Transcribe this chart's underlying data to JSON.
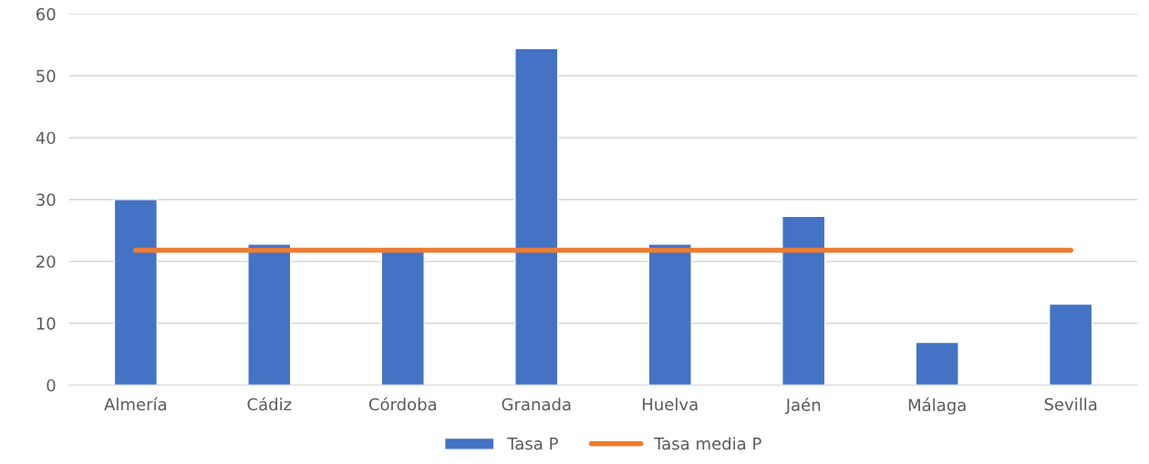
{
  "chart_data": {
    "type": "bar",
    "categories": [
      "Almería",
      "Cádiz",
      "Córdoba",
      "Granada",
      "Huelva",
      "Jaén",
      "Málaga",
      "Sevilla"
    ],
    "series": [
      {
        "name": "Tasa P",
        "color": "#4472c4",
        "values": [
          30.0,
          22.8,
          21.7,
          54.4,
          22.8,
          27.3,
          6.9,
          13.1
        ]
      },
      {
        "name": "Tasa media P",
        "type": "line",
        "color": "#ed7d31",
        "values": [
          21.8,
          21.8,
          21.8,
          21.8,
          21.8,
          21.8,
          21.8,
          21.8
        ]
      }
    ],
    "ylim": [
      0,
      60
    ],
    "yticks": [
      0,
      10,
      20,
      30,
      40,
      50,
      60
    ],
    "grid": "y",
    "legend": "bottom"
  }
}
